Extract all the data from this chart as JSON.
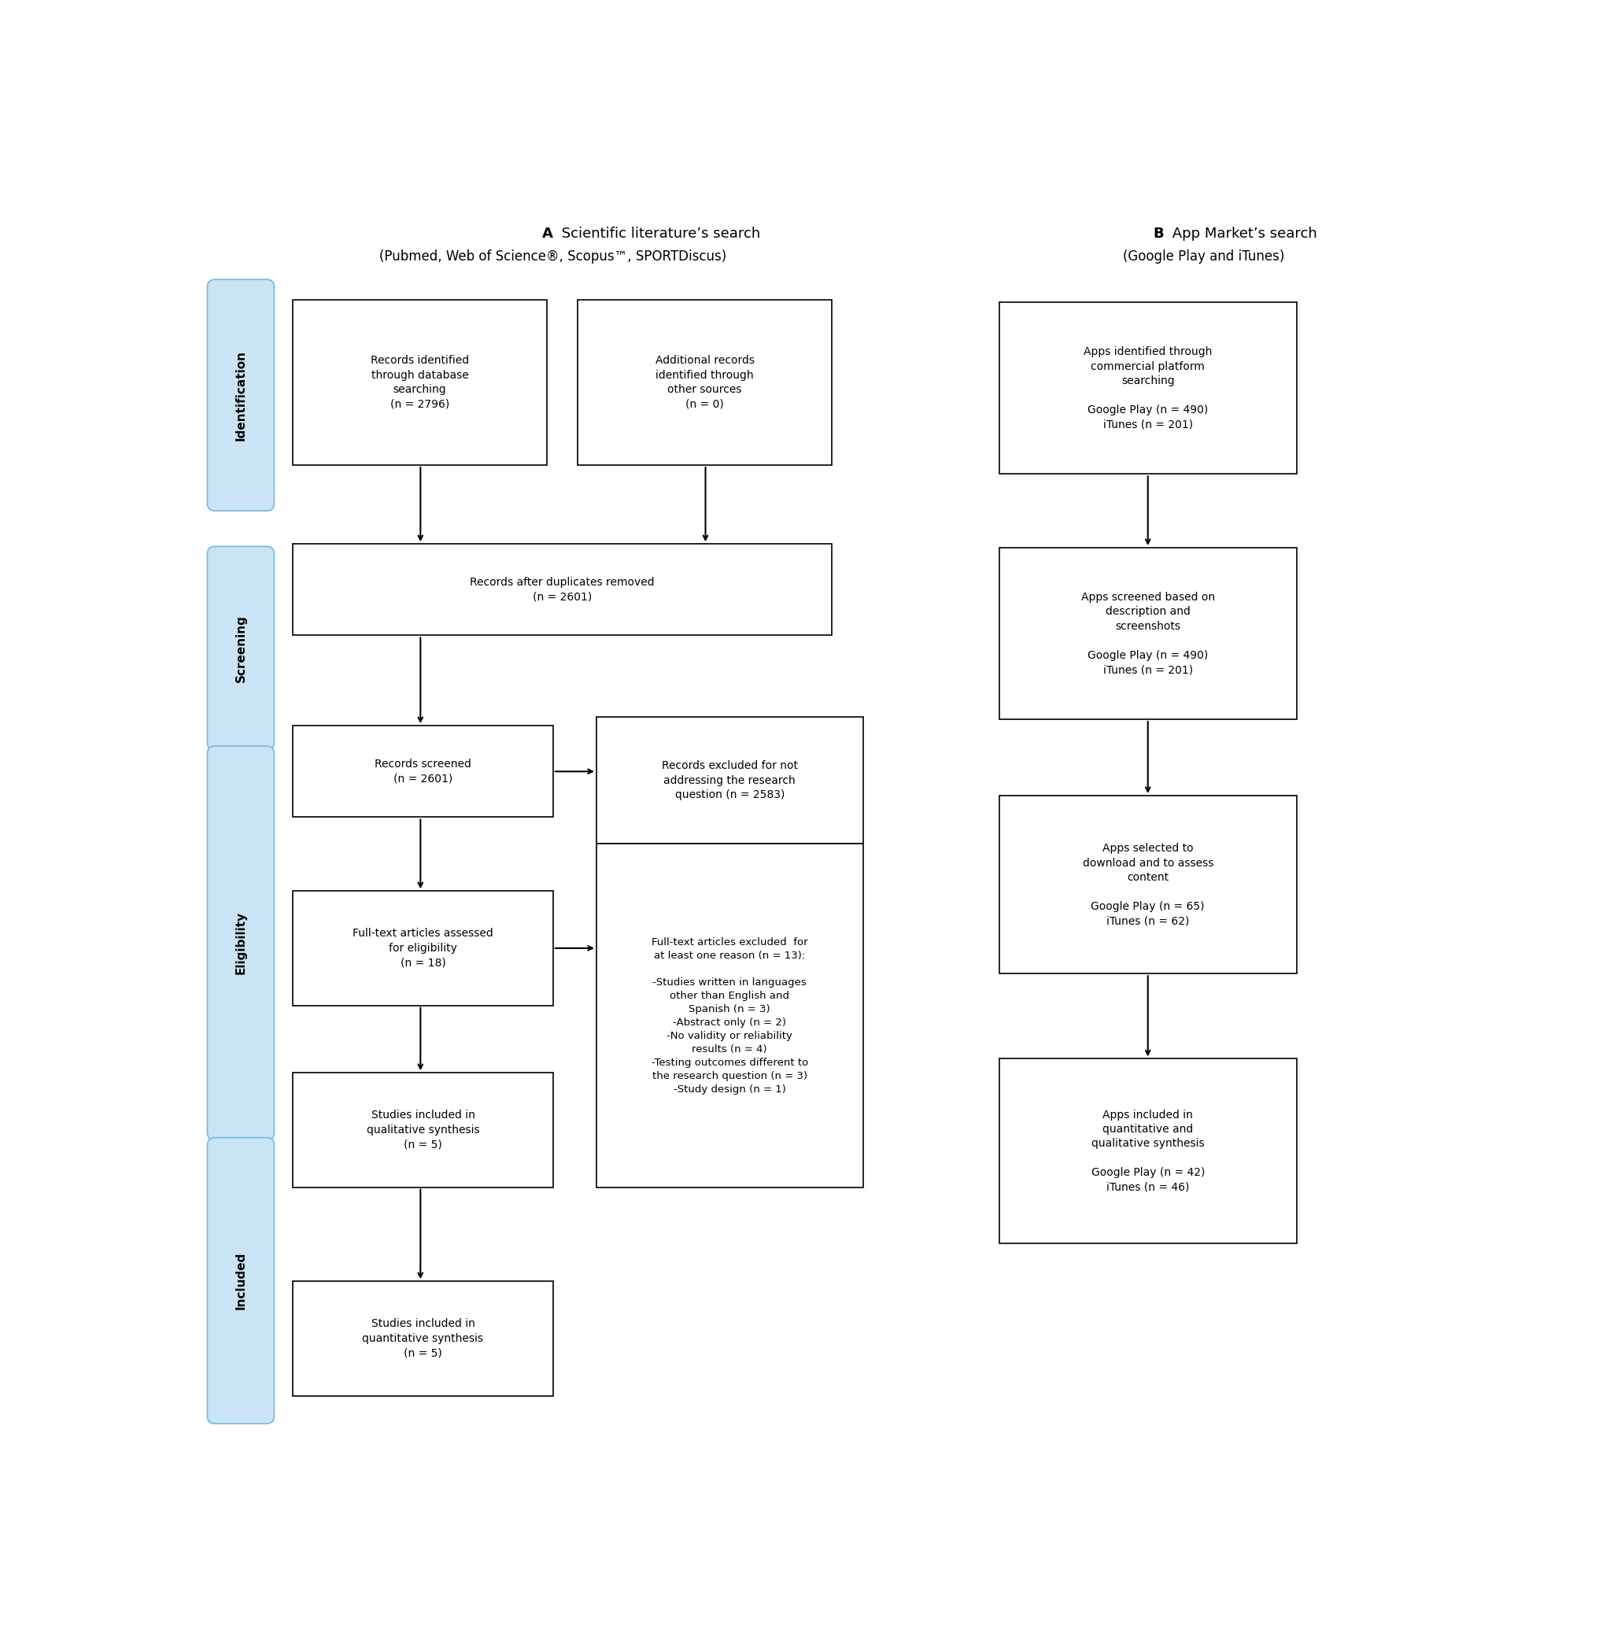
{
  "title_A_bold": "A",
  "title_A_text": " Scientific literature’s search",
  "title_A_sub": "(Pubmed, Web of Science®, Scopus™, SPORTDiscus)",
  "title_B_bold": "B",
  "title_B_text": " App Market’s search",
  "title_B_sub": "(Google Play and iTunes)",
  "sidebar_color": "#c9e4f5",
  "sidebar_border": "#7ab8d9",
  "box_facecolor": "#ffffff",
  "box_edgecolor": "#000000",
  "arrow_color": "#000000",
  "font_size_box": 10,
  "font_size_title": 13,
  "font_size_sidebar": 11
}
